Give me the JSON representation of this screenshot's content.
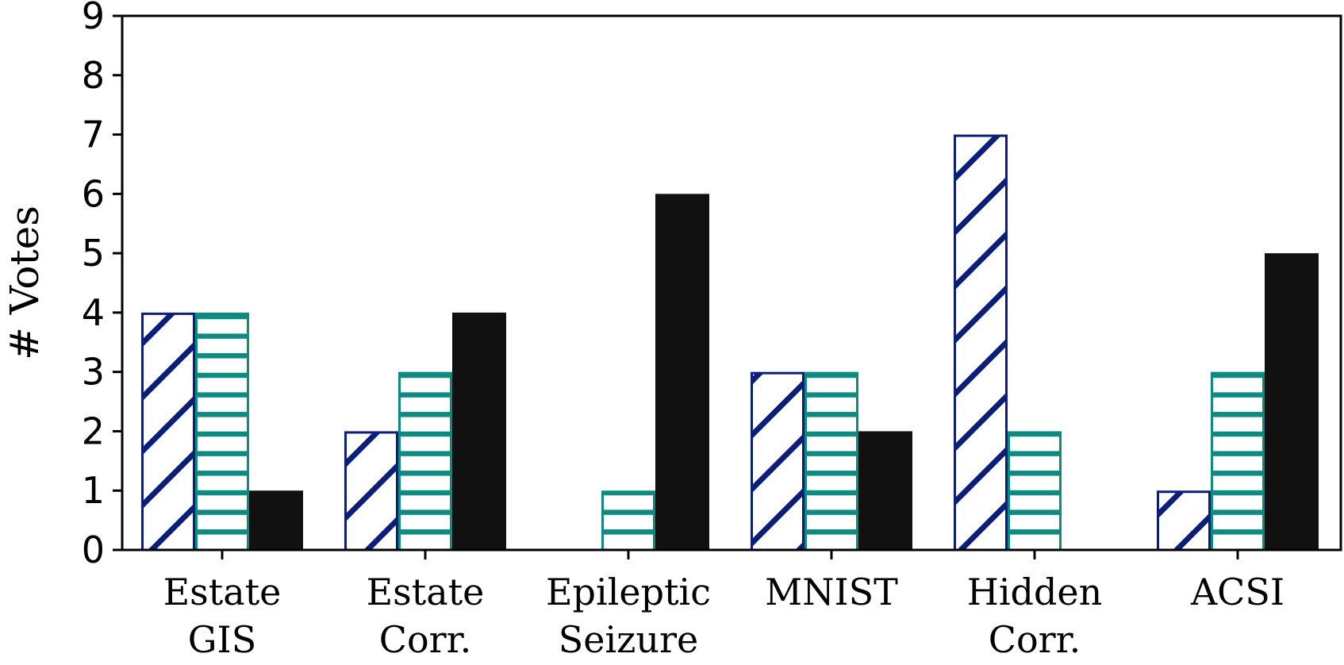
{
  "chart_data": {
    "type": "bar",
    "title": "",
    "xlabel": "",
    "ylabel": "# Votes",
    "ylim": [
      0,
      9
    ],
    "yticks": [
      "0",
      "1",
      "2",
      "3",
      "4",
      "5",
      "6",
      "7",
      "8",
      "9"
    ],
    "categories": [
      [
        "Estate",
        "GIS"
      ],
      [
        "Estate",
        "Corr."
      ],
      [
        "Epileptic",
        "Seizure"
      ],
      [
        "MNIST",
        ""
      ],
      [
        "Hidden",
        "Corr."
      ],
      [
        "ACSI",
        ""
      ]
    ],
    "series": [
      {
        "name": "series-1",
        "values": [
          4,
          2,
          0,
          3,
          7,
          1
        ],
        "color": "#0b1f7a",
        "pattern": "diagonal-hatch"
      },
      {
        "name": "series-2",
        "values": [
          4,
          3,
          1,
          3,
          2,
          3
        ],
        "color": "#0f8a80",
        "pattern": "horizontal-hatch"
      },
      {
        "name": "series-3",
        "values": [
          1,
          4,
          6,
          2,
          0,
          5
        ],
        "color": "#111111",
        "pattern": "solid"
      }
    ],
    "grid": false,
    "legend": "none"
  }
}
